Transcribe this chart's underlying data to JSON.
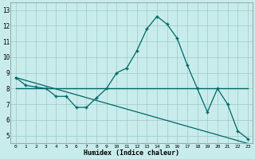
{
  "xlabel": "Humidex (Indice chaleur)",
  "bg_color": "#c8ecec",
  "grid_color": "#a0c8c8",
  "line_color": "#006666",
  "xlim": [
    -0.5,
    23.5
  ],
  "ylim": [
    4.5,
    13.5
  ],
  "xticks": [
    0,
    1,
    2,
    3,
    4,
    5,
    6,
    7,
    8,
    9,
    10,
    11,
    12,
    13,
    14,
    15,
    16,
    17,
    18,
    19,
    20,
    21,
    22,
    23
  ],
  "yticks": [
    5,
    6,
    7,
    8,
    9,
    10,
    11,
    12,
    13
  ],
  "line1_x": [
    0,
    1,
    2,
    3,
    4,
    5,
    6,
    7,
    8,
    9,
    10,
    11,
    12,
    13,
    14,
    15,
    16,
    17,
    18,
    19,
    20,
    21,
    22,
    23
  ],
  "line1_y": [
    8.7,
    8.2,
    8.1,
    8.0,
    7.5,
    7.5,
    6.8,
    6.8,
    7.4,
    8.0,
    9.0,
    9.3,
    10.4,
    11.8,
    12.6,
    12.1,
    11.2,
    9.5,
    8.0,
    6.5,
    8.0,
    7.0,
    5.3,
    4.8
  ],
  "line2_x": [
    0,
    23
  ],
  "line2_y": [
    8.0,
    8.0
  ],
  "line3_x": [
    0,
    23
  ],
  "line3_y": [
    8.7,
    4.5
  ]
}
